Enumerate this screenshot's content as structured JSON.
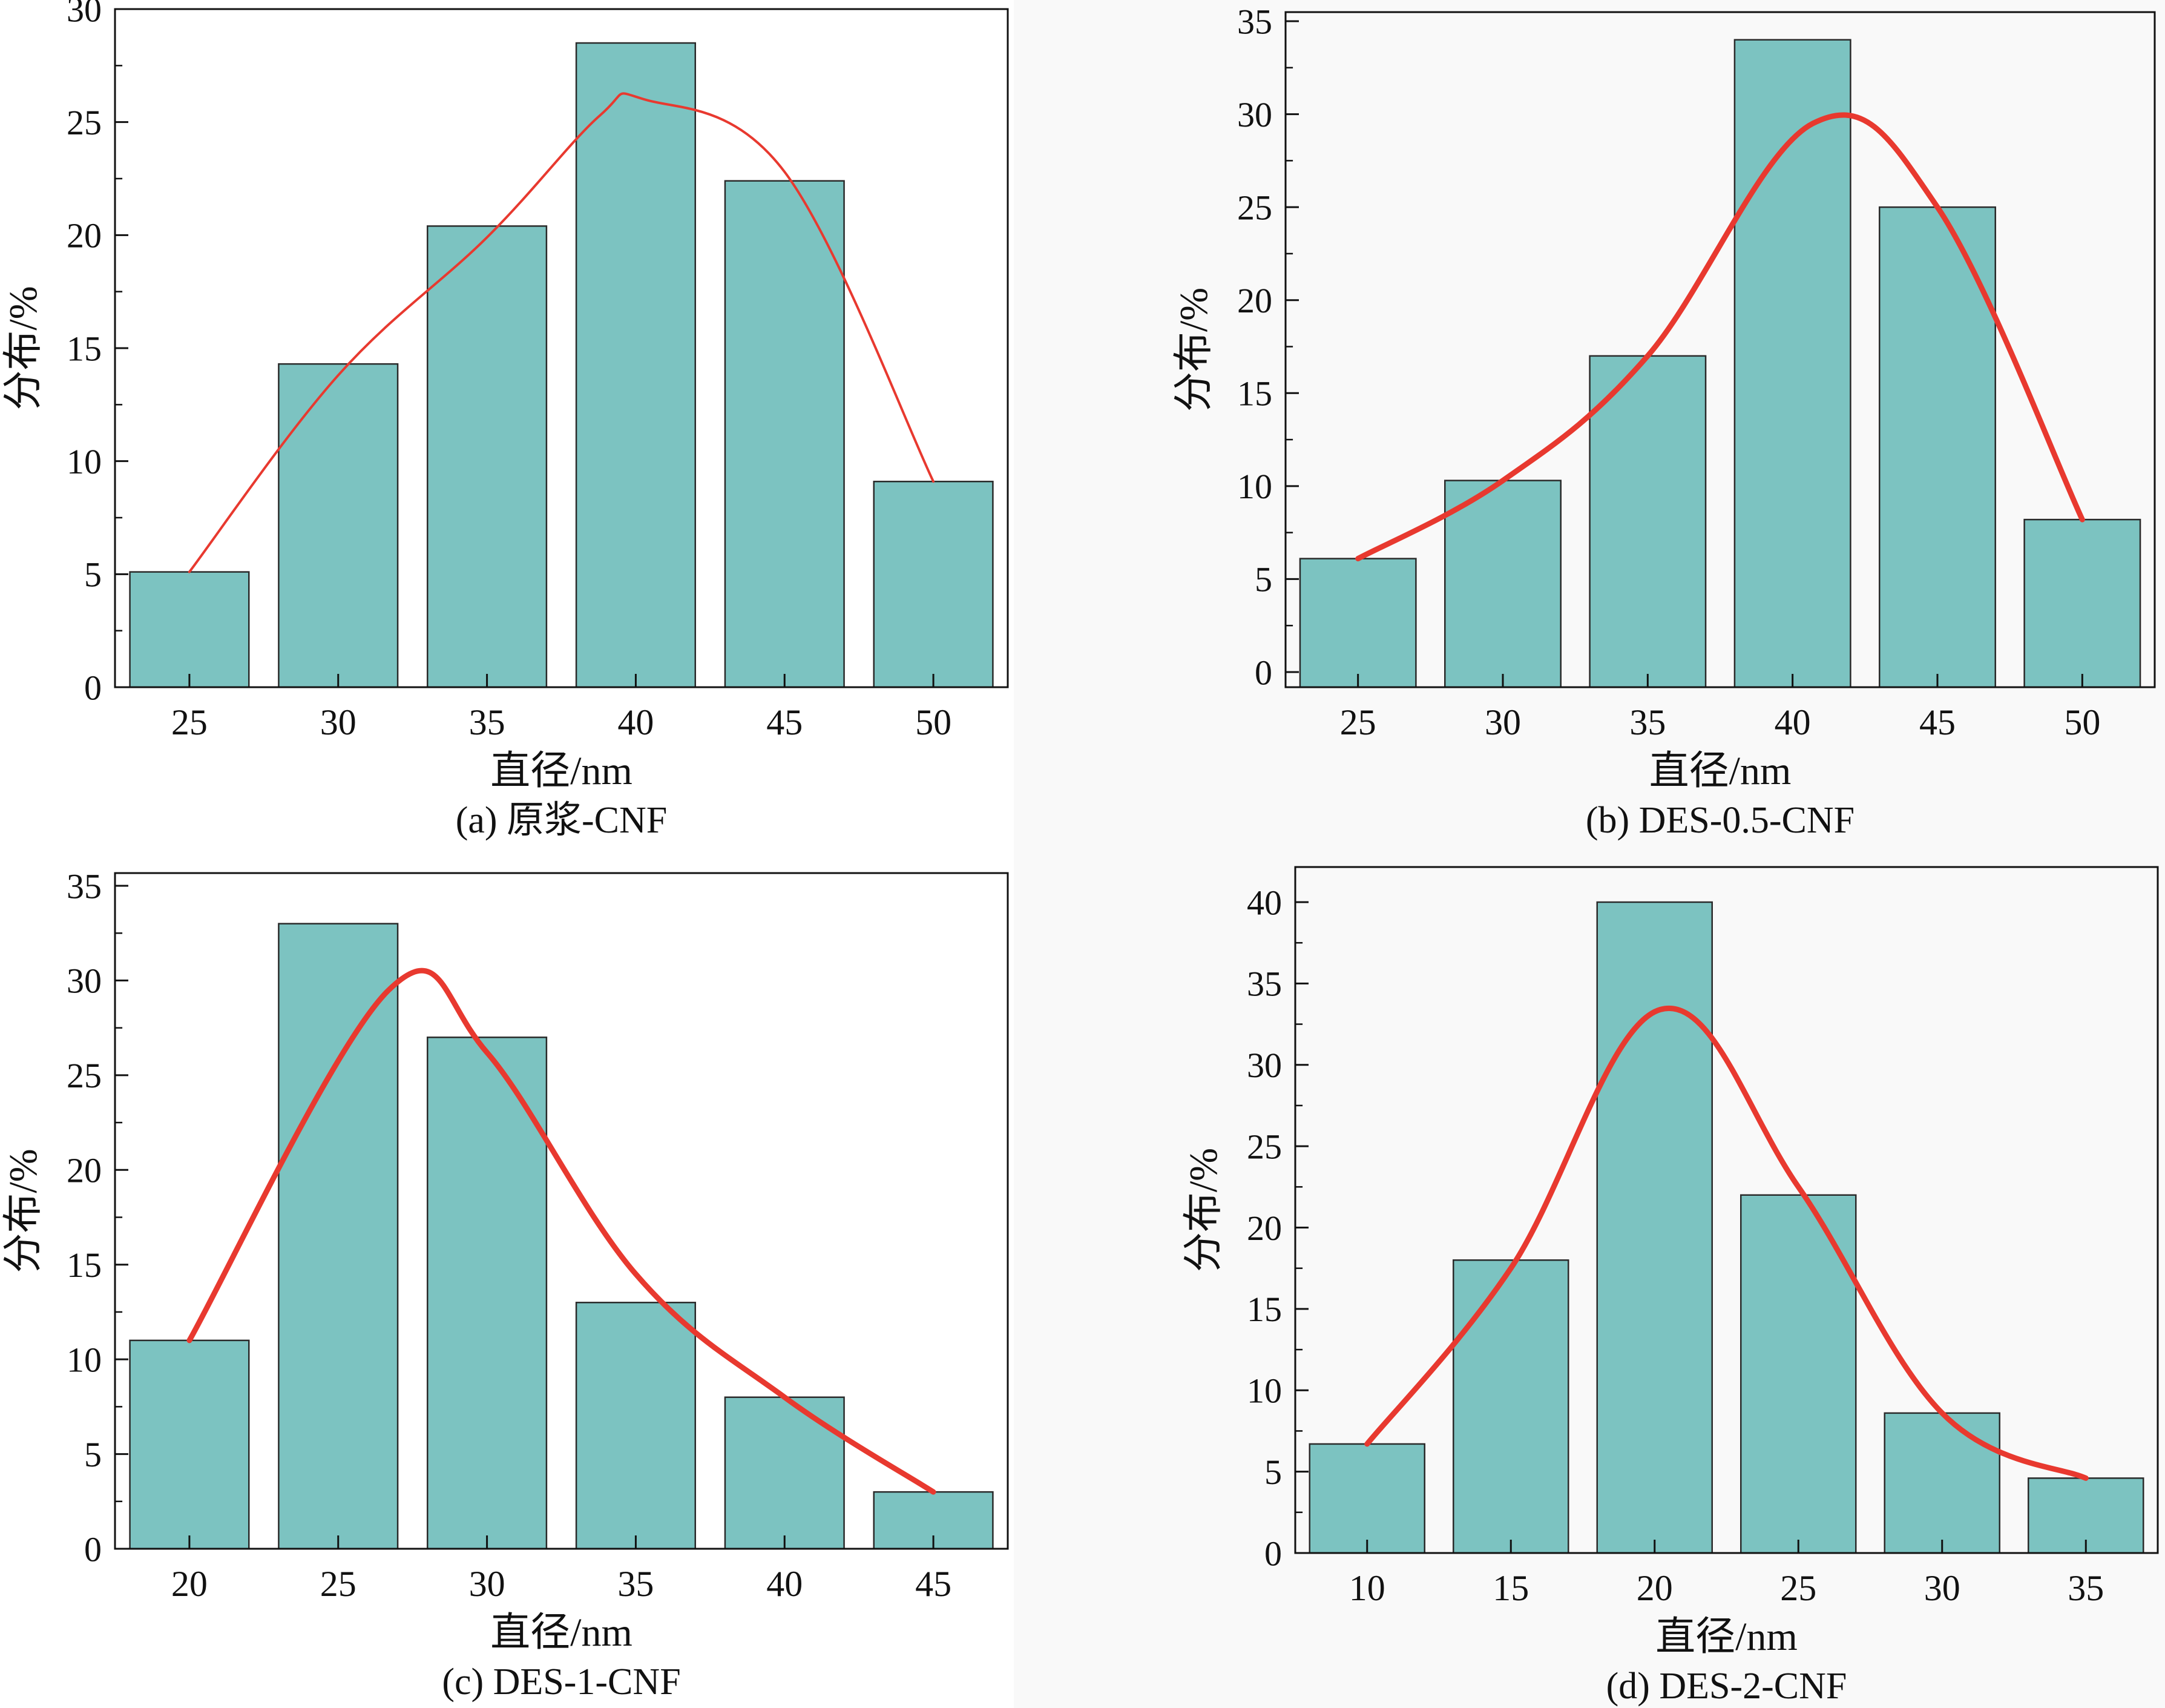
{
  "colors": {
    "bar_fill": "#7cc3c1",
    "bar_stroke": "#2a2a2a",
    "curve": "#e8392f",
    "axis": "#111111"
  },
  "chart_data": [
    {
      "type": "bar",
      "caption": "(a) 原浆-CNF",
      "xlabel": "直径/nm",
      "ylabel": "分布/%",
      "categories": [
        "25",
        "30",
        "35",
        "40",
        "45",
        "50"
      ],
      "values": [
        5.1,
        14.3,
        20.4,
        28.5,
        22.4,
        9.1
      ],
      "ylim": [
        0,
        30
      ],
      "yticks": [
        0,
        5,
        10,
        15,
        20,
        25,
        30
      ],
      "fit_curve": [
        5.1,
        13.8,
        19.9,
        25.3,
        26.0,
        22.8,
        9.1
      ],
      "fit_x": [
        25,
        30,
        35,
        38.8,
        40.3,
        45,
        50
      ],
      "curve_style": "thin"
    },
    {
      "type": "bar",
      "caption": "(b) DES-0.5-CNF",
      "xlabel": "直径/nm",
      "ylabel": "分布/%",
      "categories": [
        "25",
        "30",
        "35",
        "40",
        "45",
        "50"
      ],
      "values": [
        6.1,
        10.3,
        17.0,
        34.0,
        25.0,
        8.2
      ],
      "ylim": [
        0,
        35
      ],
      "yticks": [
        0,
        5,
        10,
        15,
        20,
        25,
        30,
        35
      ],
      "fit_curve": [
        6.1,
        10.3,
        17.0,
        29.5,
        25.0,
        8.2
      ],
      "fit_x": [
        25,
        30,
        35,
        40.7,
        45,
        50
      ],
      "curve_style": "thick"
    },
    {
      "type": "bar",
      "caption": "(c) DES-1-CNF",
      "xlabel": "直径/nm",
      "ylabel": "分布/%",
      "categories": [
        "20",
        "25",
        "30",
        "35",
        "40",
        "45"
      ],
      "values": [
        11,
        33,
        27,
        13,
        8,
        3
      ],
      "ylim": [
        0,
        35
      ],
      "yticks": [
        0,
        5,
        10,
        15,
        20,
        25,
        30,
        35
      ],
      "fit_curve": [
        11,
        29.5,
        26.2,
        14.5,
        8.0,
        3
      ],
      "fit_x": [
        20,
        26.7,
        30,
        35,
        40,
        45
      ],
      "curve_style": "thick"
    },
    {
      "type": "bar",
      "caption": "(d) DES-2-CNF",
      "xlabel": "直径/nm",
      "ylabel": "分布/%",
      "categories": [
        "10",
        "15",
        "20",
        "25",
        "30",
        "35"
      ],
      "values": [
        6.7,
        18,
        40,
        22,
        8.6,
        4.6
      ],
      "ylim": [
        0,
        42
      ],
      "yticks": [
        0,
        5,
        10,
        15,
        20,
        25,
        30,
        35,
        40
      ],
      "fit_curve": [
        6.7,
        17.5,
        33.4,
        22.5,
        8.6,
        4.6
      ],
      "fit_x": [
        10,
        15,
        20.2,
        25,
        30,
        35
      ],
      "curve_style": "thick"
    }
  ]
}
